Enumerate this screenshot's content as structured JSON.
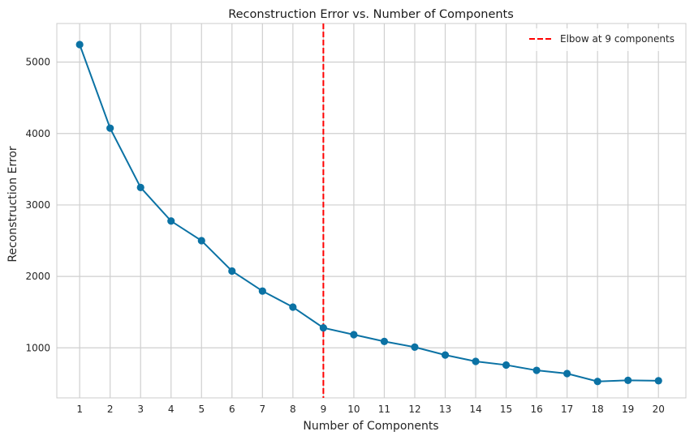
{
  "chart_data": {
    "type": "line",
    "title": "Reconstruction Error vs. Number of Components",
    "xlabel": "Number of Components",
    "ylabel": "Reconstruction Error",
    "x": [
      1,
      2,
      3,
      4,
      5,
      6,
      7,
      8,
      9,
      10,
      11,
      12,
      13,
      14,
      15,
      16,
      17,
      18,
      19,
      20
    ],
    "x_tick_labels": [
      "1",
      "2",
      "3",
      "4",
      "5",
      "6",
      "7",
      "8",
      "9",
      "10",
      "11",
      "12",
      "13",
      "14",
      "15",
      "16",
      "17",
      "18",
      "19",
      "20"
    ],
    "series": [
      {
        "values": [
          5245,
          4075,
          3245,
          2775,
          2500,
          2075,
          1795,
          1570,
          1280,
          1185,
          1090,
          1010,
          900,
          810,
          760,
          685,
          640,
          530,
          545,
          540
        ],
        "color": "#0b72a4",
        "marker": "circle"
      }
    ],
    "xlim": [
      0.25,
      20.9
    ],
    "ylim": [
      300,
      5540
    ],
    "y_ticks": [
      1000,
      2000,
      3000,
      4000,
      5000
    ],
    "y_tick_labels": [
      "1000",
      "2000",
      "3000",
      "4000",
      "5000"
    ],
    "grid": true,
    "elbow": {
      "x": 9,
      "label": "Elbow at 9 components",
      "color": "#ff0000",
      "style": "dashed"
    },
    "legend_position": "top-right",
    "colors": {
      "grid": "#cfcfcf",
      "frame": "#cccccc",
      "background": "#ffffff"
    }
  }
}
